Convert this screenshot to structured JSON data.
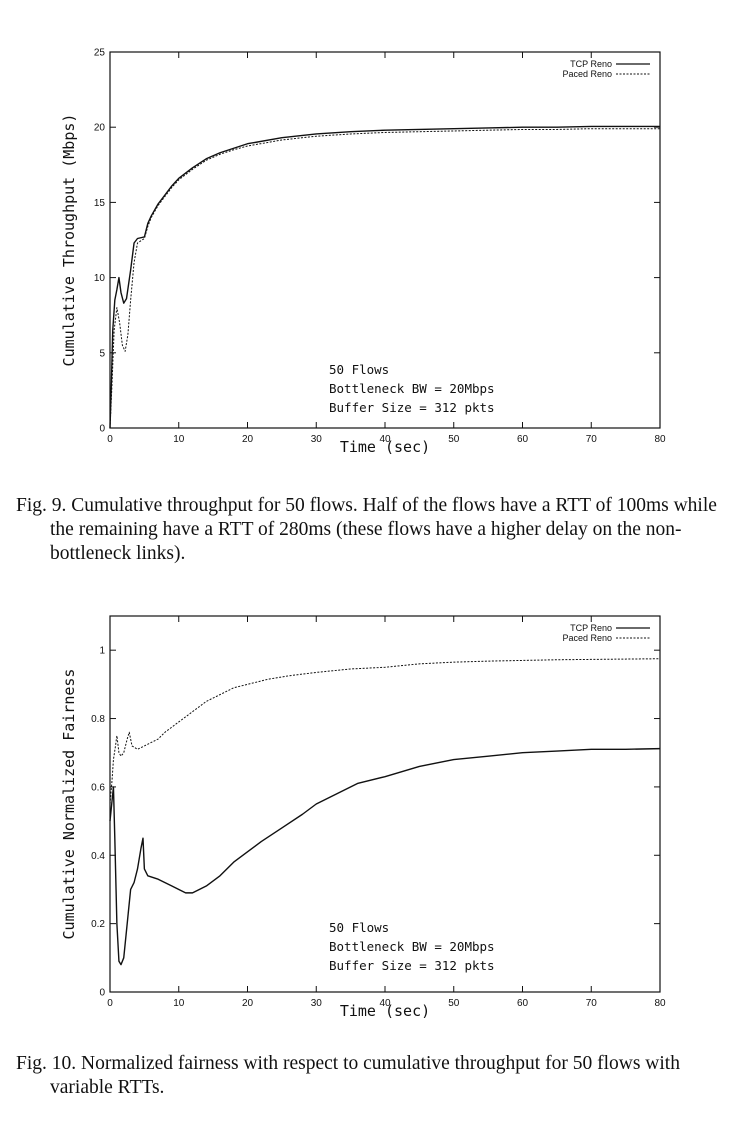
{
  "chart_data": [
    {
      "id": "fig9",
      "type": "line",
      "title": "",
      "xlabel": "Time (sec)",
      "ylabel": "Cumulative Throughput (Mbps)",
      "xlim": [
        0,
        80
      ],
      "ylim": [
        0,
        25
      ],
      "xticks": [
        "0",
        "10",
        "20",
        "30",
        "40",
        "50",
        "60",
        "70",
        "80"
      ],
      "yticks": [
        "0",
        "5",
        "10",
        "15",
        "20",
        "25"
      ],
      "grid": false,
      "legend_position": "top-right",
      "annotation": [
        "50 Flows",
        "Bottleneck BW = 20Mbps",
        "Buffer Size = 312 pkts"
      ],
      "series": [
        {
          "name": "TCP Reno",
          "style": "solid",
          "points": [
            [
              0.0,
              0
            ],
            [
              0.2,
              3
            ],
            [
              0.4,
              6.5
            ],
            [
              0.7,
              8.5
            ],
            [
              1.0,
              9.2
            ],
            [
              1.3,
              10.0
            ],
            [
              1.6,
              9.0
            ],
            [
              2.0,
              8.3
            ],
            [
              2.4,
              8.6
            ],
            [
              3.0,
              10.5
            ],
            [
              3.5,
              12.3
            ],
            [
              4.0,
              12.6
            ],
            [
              5.0,
              12.7
            ],
            [
              5.5,
              13.6
            ],
            [
              6.0,
              14.1
            ],
            [
              7,
              14.9
            ],
            [
              8,
              15.5
            ],
            [
              9,
              16.1
            ],
            [
              10,
              16.6
            ],
            [
              12,
              17.3
            ],
            [
              14,
              17.9
            ],
            [
              16,
              18.3
            ],
            [
              18,
              18.6
            ],
            [
              20,
              18.9
            ],
            [
              25,
              19.3
            ],
            [
              30,
              19.55
            ],
            [
              35,
              19.7
            ],
            [
              40,
              19.8
            ],
            [
              45,
              19.85
            ],
            [
              50,
              19.9
            ],
            [
              55,
              19.95
            ],
            [
              60,
              20.0
            ],
            [
              65,
              20.0
            ],
            [
              70,
              20.05
            ],
            [
              75,
              20.05
            ],
            [
              80,
              20.05
            ]
          ]
        },
        {
          "name": "Paced Reno",
          "style": "dashed",
          "points": [
            [
              0.0,
              0
            ],
            [
              0.3,
              3
            ],
            [
              0.6,
              6.5
            ],
            [
              1.0,
              8.0
            ],
            [
              1.4,
              7.0
            ],
            [
              1.8,
              5.5
            ],
            [
              2.2,
              5.1
            ],
            [
              2.6,
              6.2
            ],
            [
              3.0,
              8.5
            ],
            [
              3.5,
              11.0
            ],
            [
              4.0,
              12.3
            ],
            [
              5.0,
              12.6
            ],
            [
              5.5,
              13.4
            ],
            [
              6.0,
              14.0
            ],
            [
              7,
              14.8
            ],
            [
              8,
              15.4
            ],
            [
              9,
              16.0
            ],
            [
              10,
              16.5
            ],
            [
              12,
              17.2
            ],
            [
              14,
              17.8
            ],
            [
              16,
              18.2
            ],
            [
              18,
              18.5
            ],
            [
              20,
              18.75
            ],
            [
              25,
              19.15
            ],
            [
              30,
              19.4
            ],
            [
              35,
              19.55
            ],
            [
              40,
              19.65
            ],
            [
              45,
              19.7
            ],
            [
              50,
              19.75
            ],
            [
              55,
              19.8
            ],
            [
              60,
              19.85
            ],
            [
              65,
              19.85
            ],
            [
              70,
              19.9
            ],
            [
              75,
              19.9
            ],
            [
              80,
              19.9
            ]
          ]
        }
      ]
    },
    {
      "id": "fig10",
      "type": "line",
      "title": "",
      "xlabel": "Time (sec)",
      "ylabel": "Cumulative Normalized Fairness",
      "xlim": [
        0,
        80
      ],
      "ylim": [
        0,
        1.1
      ],
      "xticks": [
        "0",
        "10",
        "20",
        "30",
        "40",
        "50",
        "60",
        "70",
        "80"
      ],
      "yticks": [
        "0",
        "0.2",
        "0.4",
        "0.6",
        "0.8",
        "1"
      ],
      "grid": false,
      "legend_position": "top-right",
      "annotation": [
        "50 Flows",
        "Bottleneck BW = 20Mbps",
        "Buffer Size = 312 pkts"
      ],
      "series": [
        {
          "name": "TCP Reno",
          "style": "solid",
          "points": [
            [
              0.0,
              0.5
            ],
            [
              0.3,
              0.56
            ],
            [
              0.5,
              0.6
            ],
            [
              0.7,
              0.45
            ],
            [
              1.0,
              0.2
            ],
            [
              1.3,
              0.09
            ],
            [
              1.6,
              0.08
            ],
            [
              2.0,
              0.1
            ],
            [
              2.5,
              0.2
            ],
            [
              3.0,
              0.3
            ],
            [
              3.5,
              0.32
            ],
            [
              4.0,
              0.36
            ],
            [
              4.5,
              0.42
            ],
            [
              4.8,
              0.45
            ],
            [
              5.0,
              0.36
            ],
            [
              5.5,
              0.34
            ],
            [
              7,
              0.33
            ],
            [
              9,
              0.31
            ],
            [
              11,
              0.29
            ],
            [
              12,
              0.29
            ],
            [
              14,
              0.31
            ],
            [
              16,
              0.34
            ],
            [
              18,
              0.38
            ],
            [
              20,
              0.41
            ],
            [
              22,
              0.44
            ],
            [
              25,
              0.48
            ],
            [
              28,
              0.52
            ],
            [
              30,
              0.55
            ],
            [
              33,
              0.58
            ],
            [
              36,
              0.61
            ],
            [
              40,
              0.63
            ],
            [
              45,
              0.66
            ],
            [
              50,
              0.68
            ],
            [
              55,
              0.69
            ],
            [
              60,
              0.7
            ],
            [
              65,
              0.705
            ],
            [
              70,
              0.71
            ],
            [
              75,
              0.71
            ],
            [
              80,
              0.712
            ]
          ]
        },
        {
          "name": "Paced Reno",
          "style": "dashed",
          "points": [
            [
              0.0,
              0.55
            ],
            [
              0.3,
              0.62
            ],
            [
              0.5,
              0.68
            ],
            [
              0.8,
              0.72
            ],
            [
              1.0,
              0.75
            ],
            [
              1.3,
              0.7
            ],
            [
              1.6,
              0.69
            ],
            [
              2.0,
              0.7
            ],
            [
              2.5,
              0.74
            ],
            [
              2.8,
              0.76
            ],
            [
              3.2,
              0.72
            ],
            [
              4.0,
              0.71
            ],
            [
              5,
              0.72
            ],
            [
              6,
              0.73
            ],
            [
              7,
              0.74
            ],
            [
              8,
              0.76
            ],
            [
              10,
              0.79
            ],
            [
              12,
              0.82
            ],
            [
              14,
              0.85
            ],
            [
              16,
              0.87
            ],
            [
              18,
              0.89
            ],
            [
              20,
              0.9
            ],
            [
              23,
              0.915
            ],
            [
              26,
              0.925
            ],
            [
              30,
              0.935
            ],
            [
              35,
              0.945
            ],
            [
              40,
              0.95
            ],
            [
              45,
              0.96
            ],
            [
              50,
              0.965
            ],
            [
              55,
              0.968
            ],
            [
              60,
              0.97
            ],
            [
              65,
              0.972
            ],
            [
              70,
              0.973
            ],
            [
              75,
              0.974
            ],
            [
              80,
              0.975
            ]
          ]
        }
      ]
    }
  ],
  "captions": {
    "fig9": "Fig. 9.  Cumulative throughput for 50 flows. Half of the flows have a RTT of 100ms while the remaining have a RTT of 280ms (these flows have a higher delay on the non-bottleneck links).",
    "fig10": "Fig. 10.  Normalized fairness with respect to cumulative throughput for 50 flows with variable RTTs."
  },
  "colors": {
    "line": "#111111",
    "axes": "#111111",
    "background": "#ffffff"
  }
}
